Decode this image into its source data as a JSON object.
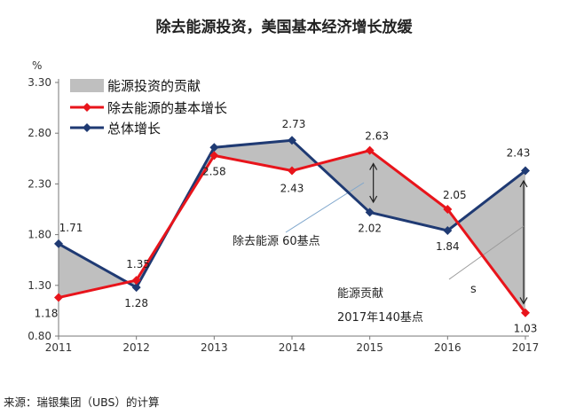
{
  "chart_data": {
    "type": "line",
    "title": "除去能源投资，美国基本经济增长放缓",
    "ylabel": "%",
    "xlabel": "",
    "ylim": [
      0.8,
      3.3
    ],
    "yticks": [
      "0.80",
      "1.30",
      "1.80",
      "2.30",
      "2.80",
      "3.30"
    ],
    "categories": [
      "2011",
      "2012",
      "2013",
      "2014",
      "2015",
      "2016",
      "2017"
    ],
    "series": [
      {
        "name": "除去能源的基本增长",
        "color": "#e8141b",
        "values": [
          1.18,
          1.35,
          2.58,
          2.43,
          2.63,
          2.05,
          1.03
        ],
        "labels": [
          "1.18",
          "1.35",
          "2.58",
          "2.43",
          "2.63",
          "2.05",
          "1.03"
        ]
      },
      {
        "name": "总体增长",
        "color": "#1f3a73",
        "values": [
          1.71,
          1.28,
          2.66,
          2.73,
          2.02,
          1.84,
          2.43
        ],
        "labels": [
          "1.71",
          "1.28",
          "",
          "2.73",
          "2.02",
          "1.84",
          "2.43"
        ]
      }
    ],
    "fill_legend": "能源投资的贡献",
    "fill_color": "#bfbfbf",
    "annotations": {
      "gap_2015": "除去能源 60基点",
      "gap_2017_line1": "能源贡献",
      "gap_2017_line2": "2017年140基点",
      "s_mark": "s"
    }
  },
  "source": "来源：瑞银集团（UBS）的计算"
}
